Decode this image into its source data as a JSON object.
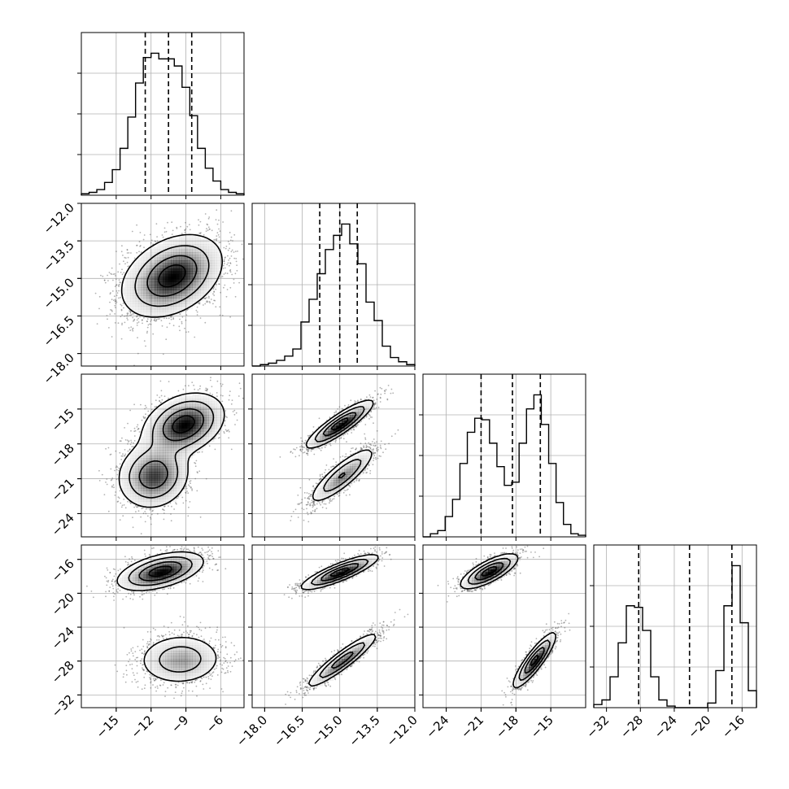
{
  "chart_data": {
    "type": "corner",
    "title": "",
    "variables": [
      {
        "index": 0,
        "range": [
          -18,
          -4
        ],
        "ticks": [
          -15,
          -12,
          -9,
          -6
        ],
        "tick_labels": [
          "−15",
          "−12",
          "−9",
          "−6"
        ],
        "quantiles": [
          -12.5,
          -10.5,
          -8.5
        ]
      },
      {
        "index": 1,
        "range": [
          -18.5,
          -12.0
        ],
        "ticks": [
          -18.0,
          -16.5,
          -15.0,
          -13.5,
          -12.0
        ],
        "tick_labels": [
          "−18.0",
          "−16.5",
          "−15.0",
          "−13.5",
          "−12.0"
        ],
        "quantiles": [
          -15.8,
          -15.0,
          -14.3
        ]
      },
      {
        "index": 2,
        "range": [
          -26,
          -12
        ],
        "ticks": [
          -24,
          -21,
          -18,
          -15
        ],
        "tick_labels": [
          "−24",
          "−21",
          "−18",
          "−15"
        ],
        "quantiles": [
          -21.0,
          -18.3,
          -15.9
        ]
      },
      {
        "index": 3,
        "range": [
          -33.5,
          -14.3
        ],
        "ticks": [
          -32,
          -28,
          -24,
          -20,
          -16
        ],
        "tick_labels": [
          "−32",
          "−28",
          "−24",
          "−20",
          "−16"
        ],
        "quantiles": [
          -28.2,
          -22.2,
          -17.2
        ]
      }
    ],
    "histograms": [
      {
        "variable": 0,
        "bin_range": [
          -18,
          -4
        ],
        "counts": [
          1,
          2,
          4,
          9,
          18,
          33,
          55,
          79,
          97,
          100,
          96,
          96,
          91,
          76,
          56,
          33,
          19,
          10,
          4,
          2,
          1
        ]
      },
      {
        "variable": 1,
        "bin_range": [
          -18.5,
          -12.0
        ],
        "counts": [
          0,
          1,
          2,
          4,
          7,
          12,
          31,
          47,
          65,
          82,
          92,
          100,
          86,
          72,
          45,
          32,
          14,
          6,
          3,
          1
        ]
      },
      {
        "variable": 2,
        "bin_range": [
          -26,
          -12
        ],
        "counts": [
          0,
          2,
          4,
          13,
          24,
          47,
          67,
          76,
          75,
          60,
          45,
          33,
          35,
          60,
          82,
          91,
          72,
          47,
          22,
          8,
          2,
          1
        ]
      },
      {
        "variable": 3,
        "bin_range": [
          -33.5,
          -14.3
        ],
        "counts": [
          2,
          5,
          20,
          42,
          66,
          65,
          50,
          20,
          5,
          1,
          0,
          0,
          0,
          0,
          3,
          24,
          66,
          92,
          55,
          11
        ]
      }
    ],
    "joint_components": [
      {
        "pair": [
          0,
          1
        ],
        "components": [
          {
            "mean": [
              -10.2,
              -14.9
            ],
            "sd": [
              2.1,
              0.8
            ],
            "rho": 0.35,
            "weight": 1.0
          }
        ]
      },
      {
        "pair": [
          0,
          2
        ],
        "components": [
          {
            "mean": [
              -9.2,
              -16.3
            ],
            "sd": [
              1.7,
              1.3
            ],
            "rho": 0.3,
            "weight": 0.55
          },
          {
            "mean": [
              -11.8,
              -20.7
            ],
            "sd": [
              1.5,
              1.4
            ],
            "rho": 0.1,
            "weight": 0.45
          }
        ]
      },
      {
        "pair": [
          1,
          2
        ],
        "components": [
          {
            "mean": [
              -15.0,
              -16.3
            ],
            "sd": [
              0.65,
              1.0
            ],
            "rho": 0.88,
            "weight": 0.55
          },
          {
            "mean": [
              -14.9,
              -20.7
            ],
            "sd": [
              0.65,
              1.2
            ],
            "rho": 0.85,
            "weight": 0.45
          }
        ]
      },
      {
        "pair": [
          0,
          3
        ],
        "components": [
          {
            "mean": [
              -11.2,
              -17.4
            ],
            "sd": [
              1.8,
              1.1
            ],
            "rho": 0.5,
            "weight": 0.55
          },
          {
            "mean": [
              -9.5,
              -27.8
            ],
            "sd": [
              1.8,
              1.5
            ],
            "rho": 0.05,
            "weight": 0.45
          }
        ]
      },
      {
        "pair": [
          1,
          3
        ],
        "components": [
          {
            "mean": [
              -15.0,
              -17.5
            ],
            "sd": [
              0.75,
              1.0
            ],
            "rho": 0.85,
            "weight": 0.55
          },
          {
            "mean": [
              -14.9,
              -27.9
            ],
            "sd": [
              0.7,
              1.6
            ],
            "rho": 0.92,
            "weight": 0.45
          }
        ]
      },
      {
        "pair": [
          2,
          3
        ],
        "components": [
          {
            "mean": [
              -20.3,
              -17.4
            ],
            "sd": [
              1.2,
              1.0
            ],
            "rho": 0.75,
            "weight": 0.55
          },
          {
            "mean": [
              -16.4,
              -27.9
            ],
            "sd": [
              0.9,
              1.6
            ],
            "rho": 0.88,
            "weight": 0.45
          }
        ]
      }
    ],
    "contour_levels": [
      0.12,
      0.32,
      0.6,
      0.86
    ],
    "grid": true,
    "colors": {
      "line": "#000000",
      "grid": "#b0b0b0",
      "points": "#555555",
      "fill": "#000000"
    }
  }
}
